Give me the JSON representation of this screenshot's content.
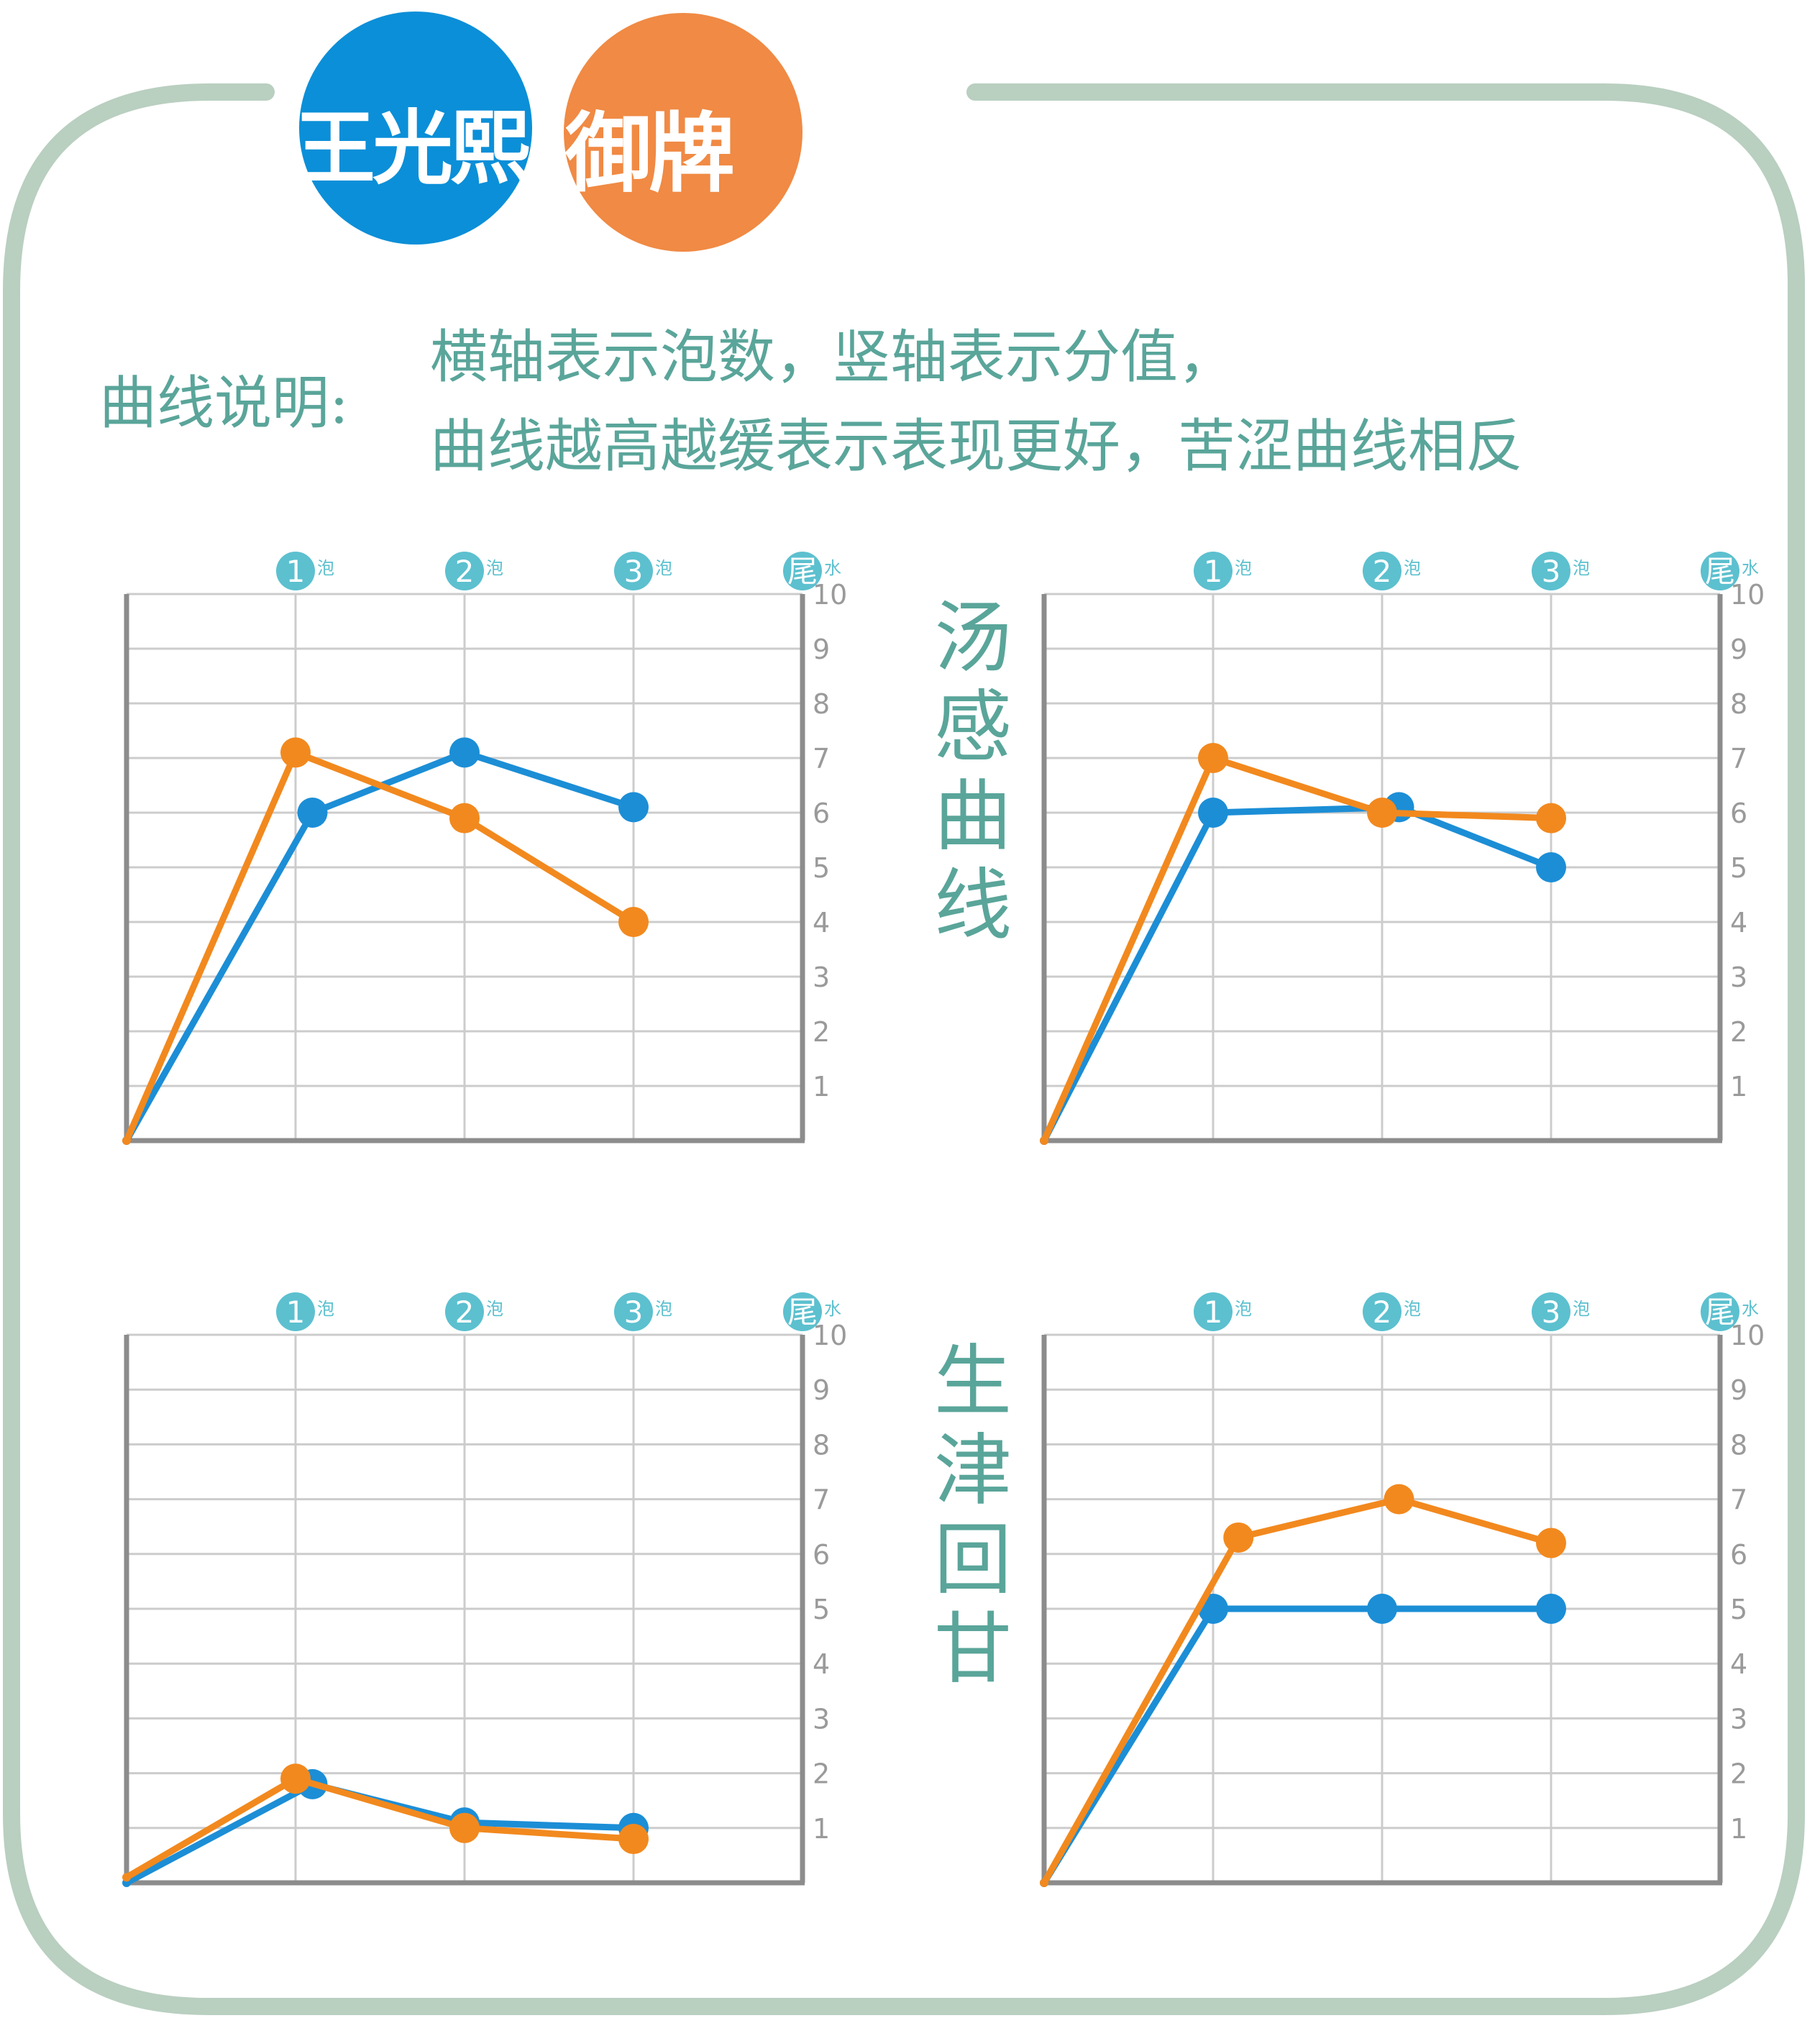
{
  "brand": {
    "left_text": "王光熙",
    "right_text": "御牌",
    "left_color": "#0b8fd8",
    "right_color": "#f08a44"
  },
  "note": {
    "label": "曲线说明:",
    "line1": "横轴表示泡数，竖轴表示分值，",
    "line2": "曲线越高越缓表示表现更好，苦涩曲线相反"
  },
  "side_titles": {
    "top": "汤感曲线",
    "bottom": "生津回甘"
  },
  "colors": {
    "frame": "#b9cfc0",
    "text": "#5aa59a",
    "blue_series": "#1c8ed6",
    "orange_series": "#f2891e",
    "badge": "#5cc0cf",
    "grid": "#cccccc",
    "axis": "#8c8c8c"
  },
  "chart_data": [
    {
      "type": "line",
      "x_markers": [
        {
          "num": "1",
          "suffix": "泡"
        },
        {
          "num": "2",
          "suffix": "泡"
        },
        {
          "num": "3",
          "suffix": "泡"
        },
        {
          "num": "尾",
          "suffix": "水"
        }
      ],
      "ylim": [
        0,
        10
      ],
      "yticks": [
        "1",
        "2",
        "3",
        "4",
        "5",
        "6",
        "7",
        "8",
        "9",
        "10"
      ],
      "grid": true,
      "series": [
        {
          "color": "blue",
          "points": [
            [
              0,
              0
            ],
            [
              1.1,
              6.0
            ],
            [
              2.0,
              7.1
            ],
            [
              3.0,
              6.1
            ]
          ]
        },
        {
          "color": "orange",
          "points": [
            [
              0,
              0
            ],
            [
              1.0,
              7.1
            ],
            [
              2.0,
              5.9
            ],
            [
              3.0,
              4.0
            ]
          ]
        }
      ]
    },
    {
      "type": "line",
      "x_markers": [
        {
          "num": "1",
          "suffix": "泡"
        },
        {
          "num": "2",
          "suffix": "泡"
        },
        {
          "num": "3",
          "suffix": "泡"
        },
        {
          "num": "尾",
          "suffix": "水"
        }
      ],
      "ylim": [
        0,
        10
      ],
      "yticks": [
        "1",
        "2",
        "3",
        "4",
        "5",
        "6",
        "7",
        "8",
        "9",
        "10"
      ],
      "grid": true,
      "series": [
        {
          "color": "blue",
          "points": [
            [
              0,
              0
            ],
            [
              1.0,
              6.0
            ],
            [
              2.1,
              6.1
            ],
            [
              3.0,
              5.0
            ]
          ]
        },
        {
          "color": "orange",
          "points": [
            [
              0,
              0
            ],
            [
              1.0,
              7.0
            ],
            [
              2.0,
              6.0
            ],
            [
              3.0,
              5.9
            ]
          ]
        }
      ]
    },
    {
      "type": "line",
      "x_markers": [
        {
          "num": "1",
          "suffix": "泡"
        },
        {
          "num": "2",
          "suffix": "泡"
        },
        {
          "num": "3",
          "suffix": "泡"
        },
        {
          "num": "尾",
          "suffix": "水"
        }
      ],
      "ylim": [
        0,
        10
      ],
      "yticks": [
        "1",
        "2",
        "3",
        "4",
        "5",
        "6",
        "7",
        "8",
        "9",
        "10"
      ],
      "grid": true,
      "series": [
        {
          "color": "blue",
          "points": [
            [
              0,
              0
            ],
            [
              1.1,
              1.8
            ],
            [
              2.0,
              1.1
            ],
            [
              3.0,
              1.0
            ]
          ]
        },
        {
          "color": "orange",
          "points": [
            [
              0,
              0.1
            ],
            [
              1.0,
              1.9
            ],
            [
              2.0,
              1.0
            ],
            [
              3.0,
              0.8
            ]
          ]
        }
      ]
    },
    {
      "type": "line",
      "x_markers": [
        {
          "num": "1",
          "suffix": "泡"
        },
        {
          "num": "2",
          "suffix": "泡"
        },
        {
          "num": "3",
          "suffix": "泡"
        },
        {
          "num": "尾",
          "suffix": "水"
        }
      ],
      "ylim": [
        0,
        10
      ],
      "yticks": [
        "1",
        "2",
        "3",
        "4",
        "5",
        "6",
        "7",
        "8",
        "9",
        "10"
      ],
      "grid": true,
      "series": [
        {
          "color": "blue",
          "points": [
            [
              0,
              0
            ],
            [
              1.0,
              5.0
            ],
            [
              2.0,
              5.0
            ],
            [
              3.0,
              5.0
            ]
          ]
        },
        {
          "color": "orange",
          "points": [
            [
              0,
              0
            ],
            [
              1.15,
              6.3
            ],
            [
              2.1,
              7.0
            ],
            [
              3.0,
              6.2
            ]
          ]
        }
      ]
    }
  ]
}
